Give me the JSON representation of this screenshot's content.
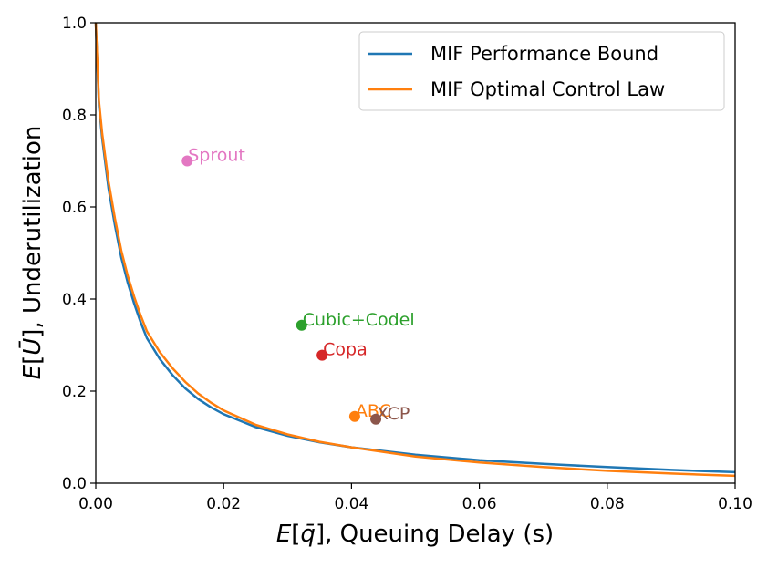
{
  "chart_data": {
    "type": "line",
    "xlabel": "E[q̄], Queuing Delay (s)",
    "ylabel": "E[Ū], Underutilization",
    "xlim": [
      0.0,
      0.1
    ],
    "ylim": [
      0.0,
      1.0
    ],
    "x_ticks": [
      "0.00",
      "0.02",
      "0.04",
      "0.06",
      "0.08",
      "0.10"
    ],
    "y_ticks": [
      "0.0",
      "0.2",
      "0.4",
      "0.6",
      "0.8",
      "1.0"
    ],
    "grid": false,
    "legend_position": "top-right",
    "series": [
      {
        "name": "MIF Performance Bound",
        "color": "#1f77b4",
        "x": [
          0.0,
          0.0005,
          0.001,
          0.002,
          0.003,
          0.004,
          0.005,
          0.006,
          0.007,
          0.008,
          0.01,
          0.012,
          0.014,
          0.016,
          0.018,
          0.02,
          0.025,
          0.03,
          0.035,
          0.04,
          0.05,
          0.06,
          0.07,
          0.08,
          0.09,
          0.1
        ],
        "values": [
          1.0,
          0.82,
          0.75,
          0.64,
          0.56,
          0.49,
          0.435,
          0.39,
          0.35,
          0.315,
          0.27,
          0.235,
          0.206,
          0.183,
          0.165,
          0.15,
          0.122,
          0.103,
          0.089,
          0.078,
          0.062,
          0.05,
          0.042,
          0.035,
          0.029,
          0.024
        ]
      },
      {
        "name": "MIF Optimal Control Law",
        "color": "#ff7f0e",
        "x": [
          0.0,
          0.0005,
          0.001,
          0.002,
          0.003,
          0.004,
          0.005,
          0.006,
          0.007,
          0.008,
          0.01,
          0.012,
          0.014,
          0.016,
          0.018,
          0.02,
          0.025,
          0.03,
          0.035,
          0.04,
          0.05,
          0.06,
          0.07,
          0.08,
          0.09,
          0.1
        ],
        "values": [
          1.0,
          0.83,
          0.76,
          0.655,
          0.575,
          0.505,
          0.45,
          0.405,
          0.365,
          0.33,
          0.285,
          0.25,
          0.22,
          0.195,
          0.175,
          0.158,
          0.127,
          0.106,
          0.09,
          0.078,
          0.058,
          0.045,
          0.035,
          0.027,
          0.021,
          0.016
        ]
      }
    ],
    "points": [
      {
        "name": "Sprout",
        "x": 0.0143,
        "y": 0.7,
        "color": "#e377c2"
      },
      {
        "name": "Cubic+Codel",
        "x": 0.0322,
        "y": 0.343,
        "color": "#2ca02c"
      },
      {
        "name": "Copa",
        "x": 0.0354,
        "y": 0.278,
        "color": "#d62728"
      },
      {
        "name": "ABC",
        "x": 0.0405,
        "y": 0.145,
        "color": "#ff7f0e"
      },
      {
        "name": "XCP",
        "x": 0.0438,
        "y": 0.139,
        "color": "#8c564b"
      }
    ]
  }
}
